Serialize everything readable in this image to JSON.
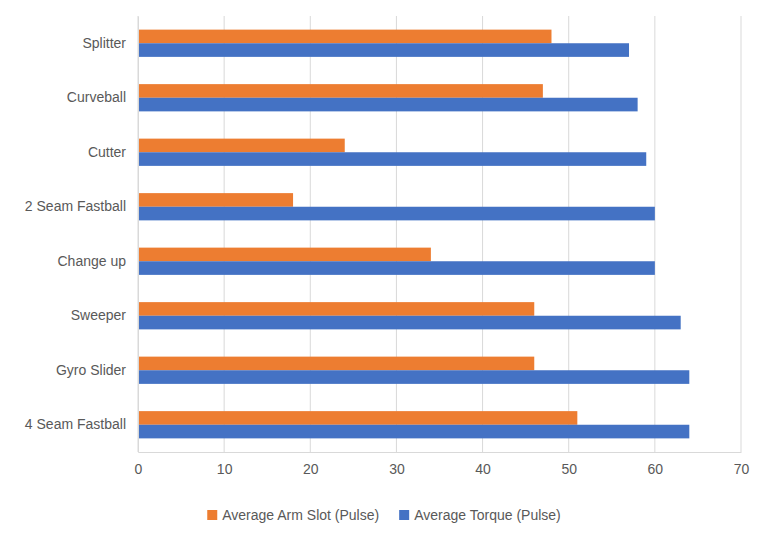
{
  "chart_data": {
    "type": "bar",
    "orientation": "horizontal",
    "categories": [
      "Splitter",
      "Curveball",
      "Cutter",
      "2 Seam Fastball",
      "Change up",
      "Sweeper",
      "Gyro Slider",
      "4 Seam Fastball"
    ],
    "series": [
      {
        "name": "Average Arm Slot (Pulse)",
        "color": "#ed7d31",
        "values": [
          48,
          47,
          24,
          18,
          34,
          46,
          46,
          51
        ]
      },
      {
        "name": "Average Torque (Pulse)",
        "color": "#4472c4",
        "values": [
          57,
          58,
          59,
          60,
          60,
          63,
          64,
          64
        ]
      }
    ],
    "xlim": [
      0,
      70
    ],
    "xticks": [
      0,
      10,
      20,
      30,
      40,
      50,
      60,
      70
    ],
    "grid": true,
    "legend": "bottom"
  }
}
